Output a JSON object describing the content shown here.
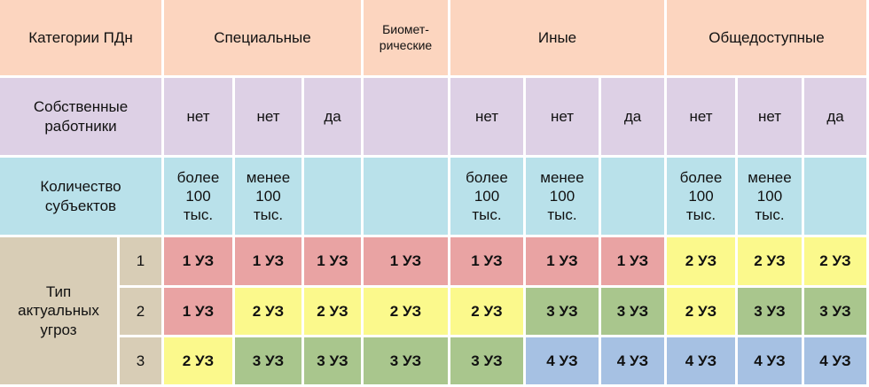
{
  "table": {
    "header": [
      "Категории ПДн",
      "Специальные",
      "Биомет-\nрические",
      "Иные",
      "Общедоступные"
    ],
    "employees": {
      "label": "Собственные\nработники",
      "cells": [
        "нет",
        "нет",
        "да",
        null,
        "нет",
        "нет",
        "да",
        "нет",
        "нет",
        "да"
      ]
    },
    "subjects": {
      "label": "Количество\nсубъектов",
      "cells": [
        "более\n100\nтыс.",
        "менее\n100\nтыс.",
        null,
        null,
        "более\n100\nтыс.",
        "менее\n100\nтыс.",
        null,
        "более\n100\nтыс.",
        "менее\n100\nтыс.",
        null
      ]
    },
    "threats": {
      "label": "Тип\nактуальных\nугроз",
      "rows": [
        {
          "level": 1,
          "cells": [
            "1 УЗ",
            "1 УЗ",
            "1 УЗ",
            "1 УЗ",
            "1 УЗ",
            "1 УЗ",
            "1 УЗ",
            "2 УЗ",
            "2 УЗ",
            "2 УЗ"
          ]
        },
        {
          "level": 2,
          "cells": [
            "1 УЗ",
            "2 УЗ",
            "2 УЗ",
            "2 УЗ",
            "2 УЗ",
            "3 УЗ",
            "3 УЗ",
            "2 УЗ",
            "3 УЗ",
            "3 УЗ"
          ]
        },
        {
          "level": 3,
          "cells": [
            "2 УЗ",
            "3 УЗ",
            "3 УЗ",
            "3 УЗ",
            "3 УЗ",
            "4 УЗ",
            "4 УЗ",
            "4 УЗ",
            "4 УЗ",
            "4 УЗ"
          ]
        }
      ]
    }
  }
}
